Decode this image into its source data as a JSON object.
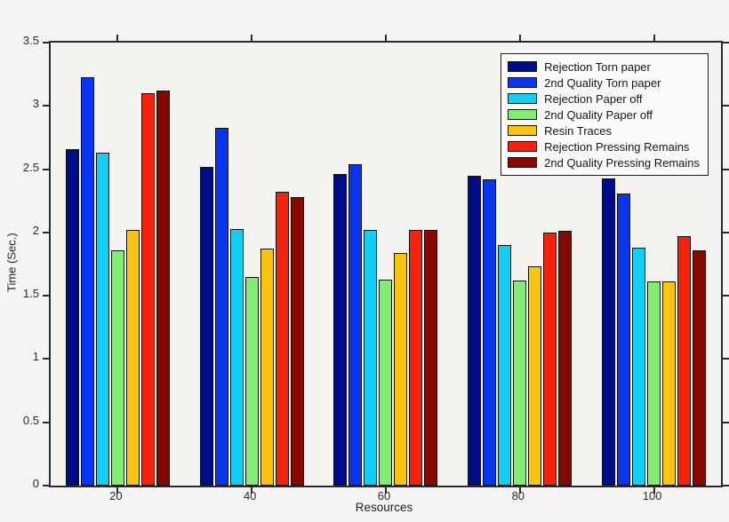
{
  "figure": {
    "background": "#f5f4f2",
    "axis_color": "#2a2a2a"
  },
  "chart_data": {
    "type": "bar",
    "title": "",
    "xlabel": "Resources",
    "ylabel": "Time (Sec.)",
    "categories": [
      "20",
      "40",
      "60",
      "80",
      "100"
    ],
    "ylim": [
      0,
      3.5
    ],
    "y_ticks": [
      0,
      0.5,
      1,
      1.5,
      2,
      2.5,
      3,
      3.5
    ],
    "grid": false,
    "legend_position": "upper right",
    "series": [
      {
        "name": "Rejection Torn paper",
        "color": "#000d8a",
        "values": [
          2.66,
          2.52,
          2.46,
          2.45,
          2.43
        ]
      },
      {
        "name": "2nd Quality Torn paper",
        "color": "#0a35f0",
        "values": [
          3.23,
          2.83,
          2.54,
          2.42,
          2.31
        ]
      },
      {
        "name": "Rejection Paper off",
        "color": "#12cef5",
        "values": [
          2.63,
          2.03,
          2.02,
          1.9,
          1.88
        ]
      },
      {
        "name": "2nd Quality Paper off",
        "color": "#83ec72",
        "values": [
          1.86,
          1.65,
          1.63,
          1.62,
          1.61
        ]
      },
      {
        "name": "Resin Traces",
        "color": "#f8c410",
        "values": [
          2.02,
          1.87,
          1.84,
          1.73,
          1.61
        ]
      },
      {
        "name": "Rejection Pressing Remains",
        "color": "#f6230c",
        "values": [
          3.1,
          2.32,
          2.02,
          2.0,
          1.97
        ]
      },
      {
        "name": "2nd Quality Pressing Remains",
        "color": "#870801",
        "values": [
          3.12,
          2.28,
          2.02,
          2.01,
          1.86
        ]
      }
    ]
  }
}
